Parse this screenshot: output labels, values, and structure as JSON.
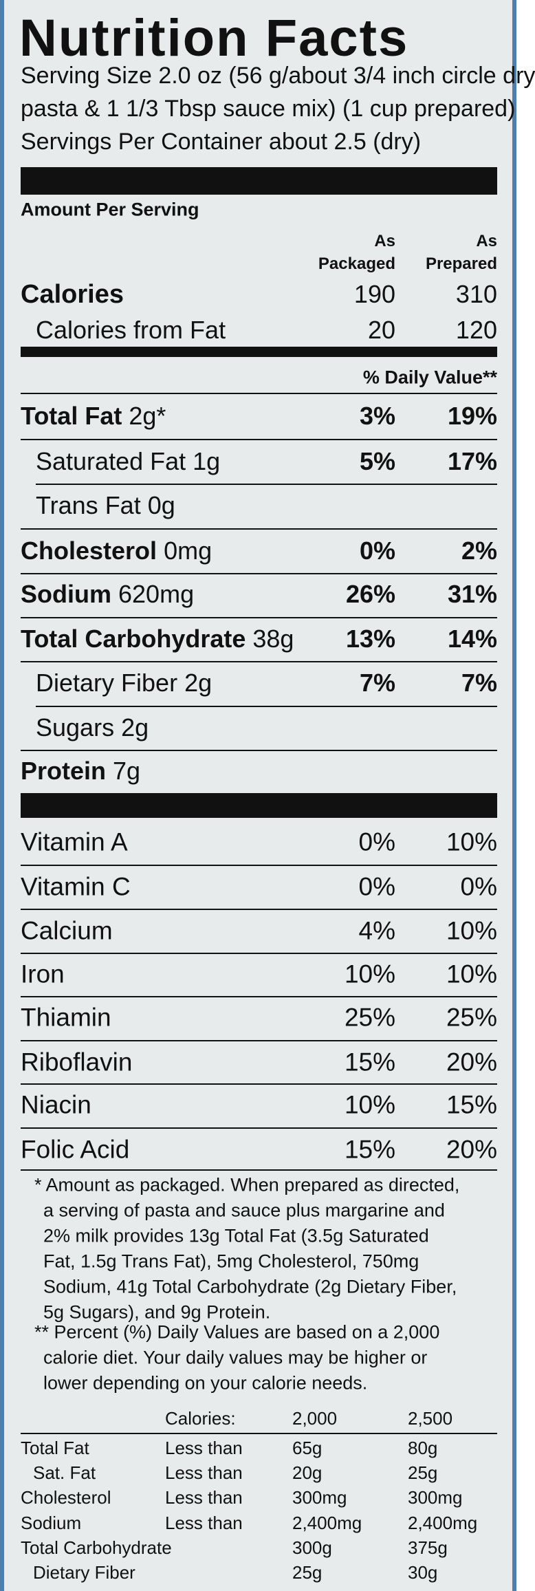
{
  "title": "Nutrition Facts",
  "serving": [
    "Serving Size 2.0 oz (56 g/about 3/4 inch circle dry",
    "pasta & 1 1/3 Tbsp sauce mix) (1 cup prepared)",
    "Servings Per Container about 2.5 (dry)"
  ],
  "amount_per_serving": "Amount Per Serving",
  "columns": [
    [
      "As",
      "Packaged"
    ],
    [
      "As",
      "Prepared"
    ]
  ],
  "calories": {
    "label": "Calories",
    "values": [
      "190",
      "310"
    ]
  },
  "calories_from_fat": {
    "label": "Calories from Fat",
    "values": [
      "20",
      "120"
    ]
  },
  "daily_value_header": "% Daily Value**",
  "nutrients": [
    {
      "name": "Total Fat",
      "amount": "2g*",
      "values": [
        "3%",
        "19%"
      ]
    },
    {
      "name": "Saturated Fat",
      "amount": "1g",
      "values": [
        "5%",
        "17%"
      ]
    },
    {
      "name": "Trans Fat",
      "amount": "0g"
    },
    {
      "name": "Cholesterol",
      "amount": "0mg",
      "values": [
        "0%",
        "2%"
      ]
    },
    {
      "name": "Sodium",
      "amount": "620mg",
      "values": [
        "26%",
        "31%"
      ]
    },
    {
      "name": "Total Carbohydrate",
      "amount": "38g",
      "values": [
        "13%",
        "14%"
      ]
    },
    {
      "name": "Dietary Fiber",
      "amount": "2g",
      "values": [
        "7%",
        "7%"
      ]
    },
    {
      "name": "Sugars",
      "amount": "2g"
    },
    {
      "name": "Protein",
      "amount": "7g"
    }
  ],
  "vitamins": [
    {
      "name": "Vitamin A",
      "values": [
        "0%",
        "10%"
      ]
    },
    {
      "name": "Vitamin C",
      "values": [
        "0%",
        "0%"
      ]
    },
    {
      "name": "Calcium",
      "values": [
        "4%",
        "10%"
      ]
    },
    {
      "name": "Iron",
      "values": [
        "10%",
        "10%"
      ]
    },
    {
      "name": "Thiamin",
      "values": [
        "25%",
        "25%"
      ]
    },
    {
      "name": "Riboflavin",
      "values": [
        "15%",
        "20%"
      ]
    },
    {
      "name": "Niacin",
      "values": [
        "10%",
        "15%"
      ]
    },
    {
      "name": "Folic Acid",
      "values": [
        "15%",
        "20%"
      ]
    }
  ],
  "footnote_packaged": [
    "* Amount as packaged. When prepared as directed,",
    "a serving of pasta and sauce plus margarine and",
    "2% milk provides 13g Total Fat (3.5g Saturated",
    "Fat, 1.5g Trans Fat), 5mg Cholesterol, 750mg",
    "Sodium, 41g Total Carbohydrate (2g Dietary Fiber,",
    "5g Sugars), and 9g Protein."
  ],
  "footnote_daily_values": [
    "** Percent (%) Daily Values are based on a 2,000",
    "calorie diet. Your daily values may be higher or",
    "lower depending on your calorie needs."
  ],
  "reference_table": {
    "header": [
      "Calories:",
      "2,000",
      "2,500"
    ],
    "rows": [
      [
        "Total Fat",
        "Less than",
        "65g",
        "80g"
      ],
      [
        "Sat. Fat",
        "Less than",
        "20g",
        "25g"
      ],
      [
        "Cholesterol",
        "Less than",
        "300mg",
        "300mg"
      ],
      [
        "Sodium",
        "Less than",
        "2,400mg",
        "2,400mg"
      ],
      [
        "Total Carbohydrate",
        "300g",
        "375g"
      ],
      [
        "Dietary Fiber",
        "25g",
        "30g"
      ]
    ]
  }
}
